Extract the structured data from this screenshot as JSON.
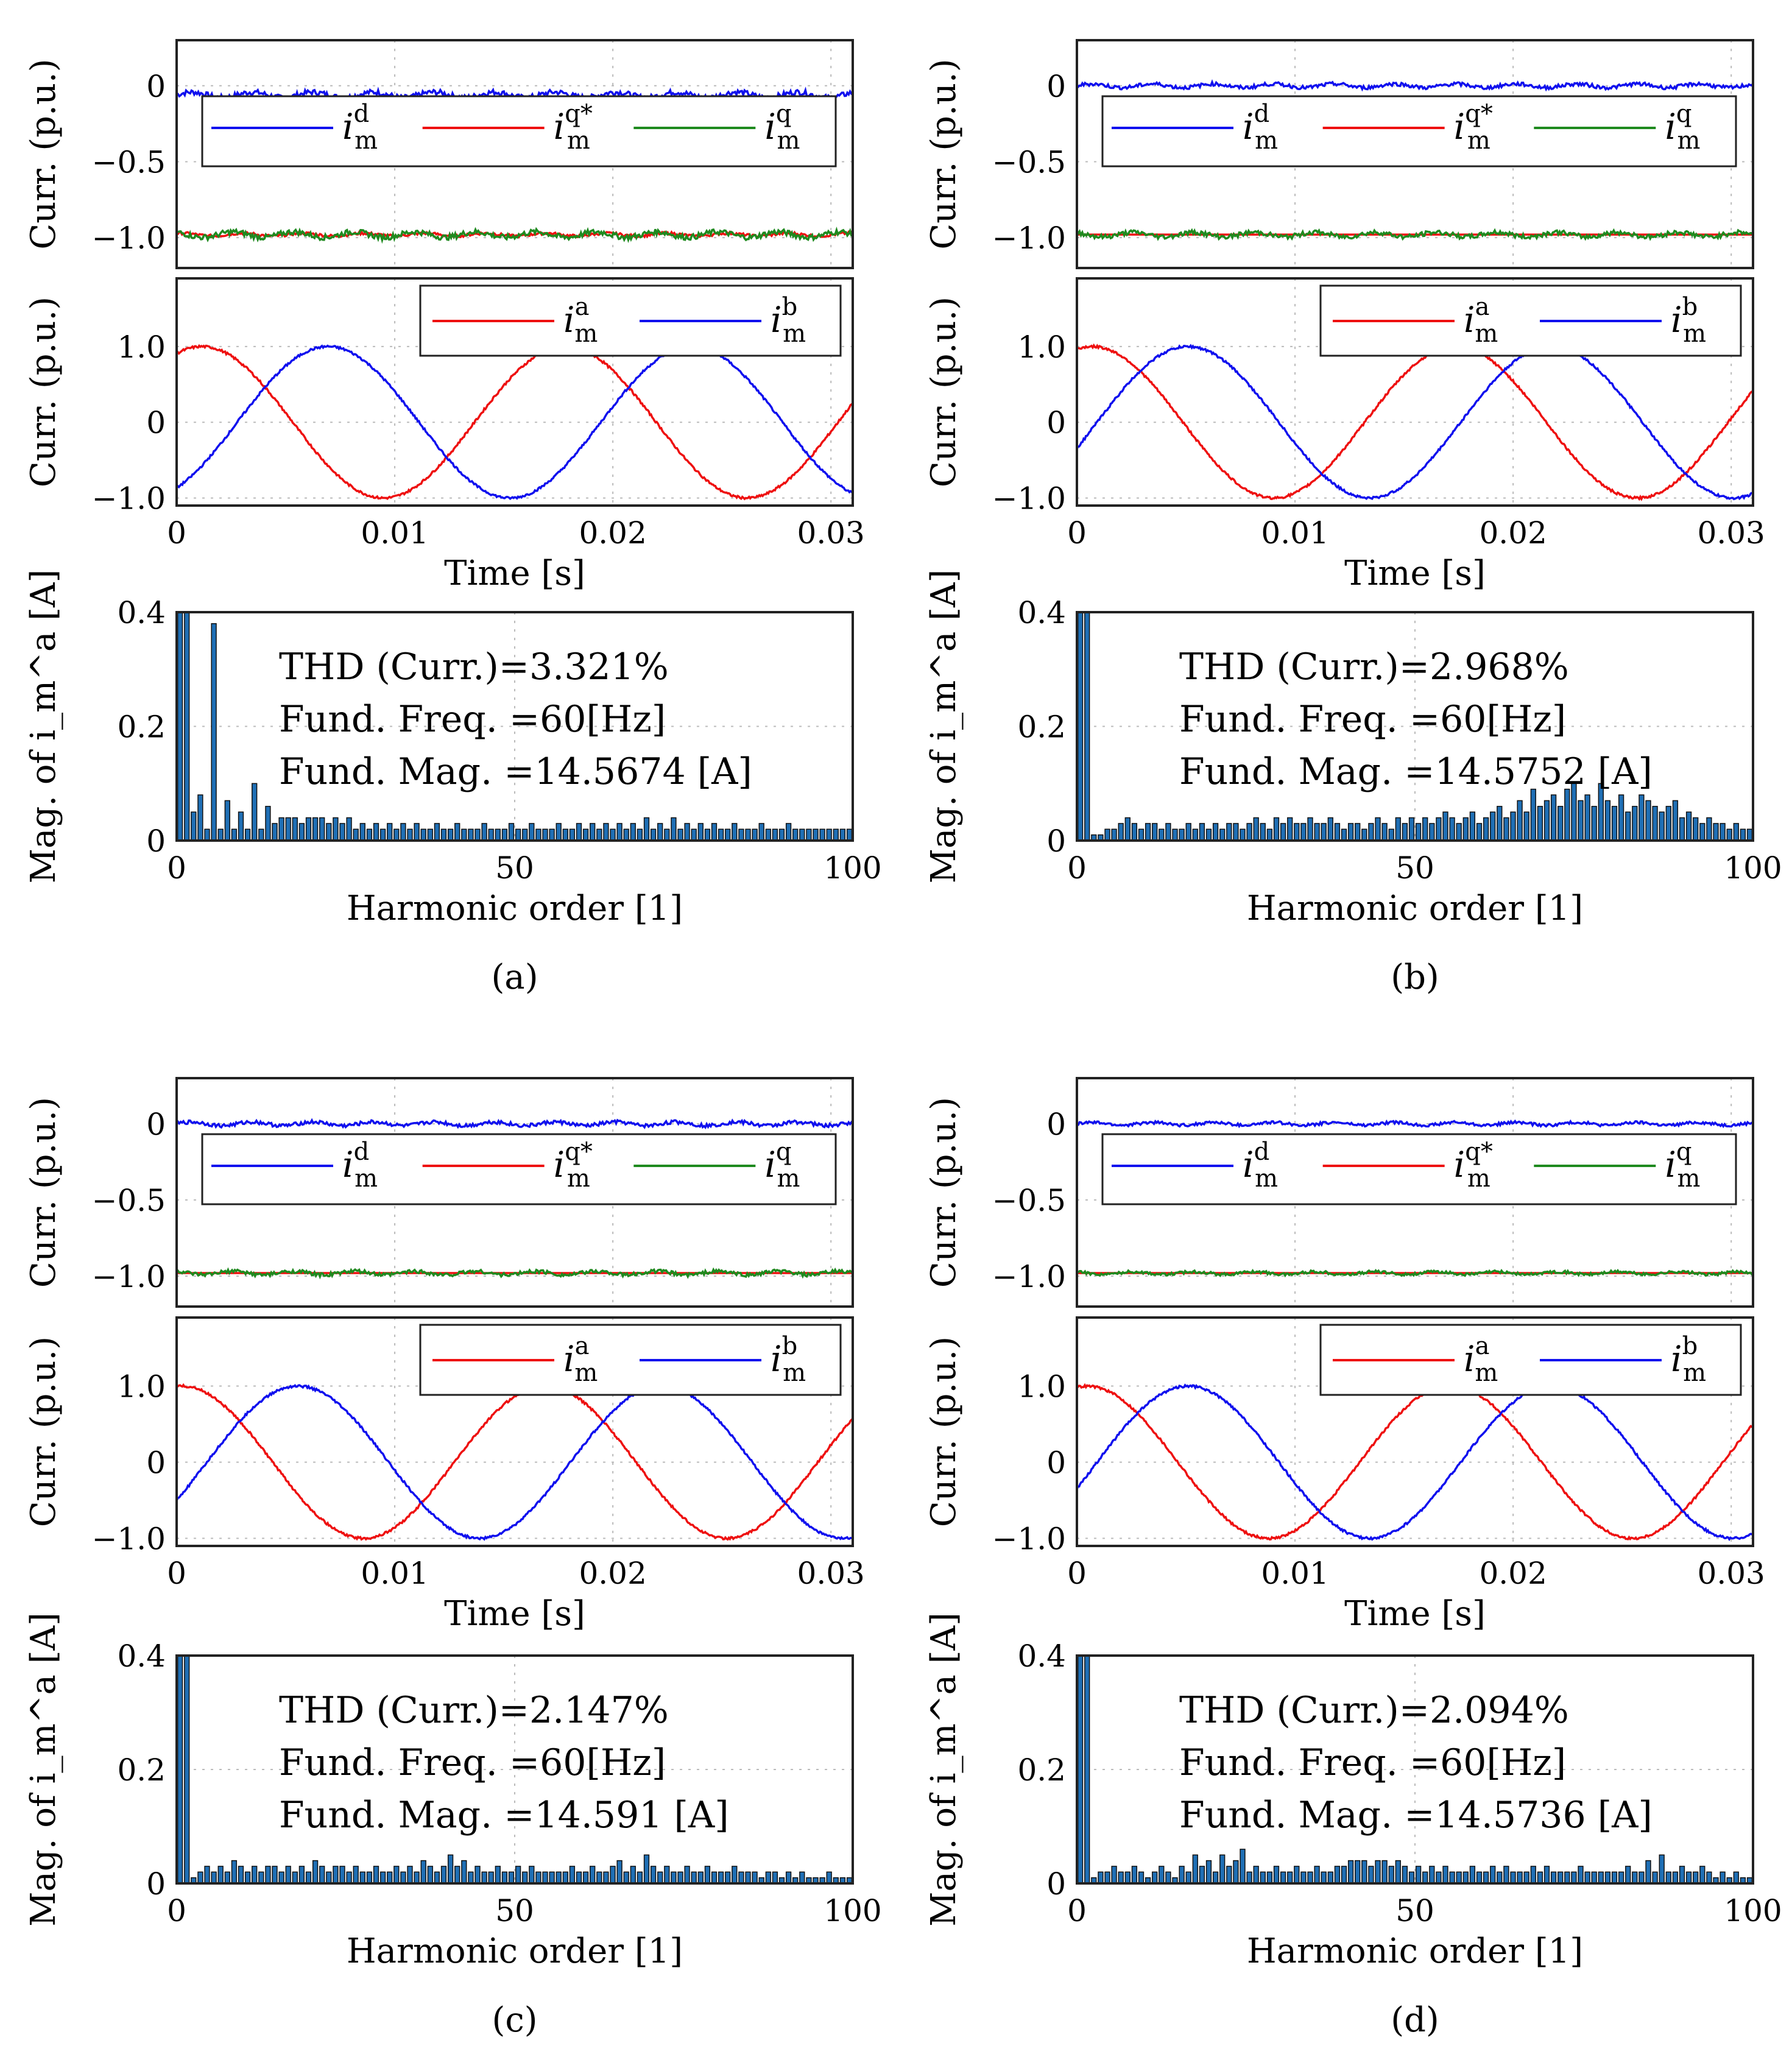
{
  "chart_data": [
    {
      "label": "(a)",
      "type": "line",
      "dq": {
        "ylabel": "Curr. (p.u.)",
        "ylim": [
          -1.2,
          0.3
        ],
        "yticks": [
          "0",
          "−0.5",
          "−1.0"
        ],
        "legend": [
          "d",
          "q*",
          "q"
        ],
        "series": [
          {
            "name": "i_m^d",
            "color": "#1010ee",
            "mean": -0.06,
            "ripple": 0.03
          },
          {
            "name": "i_m^q*",
            "color": "#ee1010",
            "mean": -0.98,
            "ripple": 0.015
          },
          {
            "name": "i_m^q",
            "color": "#1f8a1f",
            "mean": -0.98,
            "ripple": 0.03
          }
        ]
      },
      "ab": {
        "ylabel": "Curr. (p.u.)",
        "xlabel": "Time [s]",
        "xlim": [
          0,
          0.031
        ],
        "ylim": [
          -1.1,
          1.9
        ],
        "xticks": [
          "0",
          "0.01",
          "0.02",
          "0.03"
        ],
        "yticks": [
          "1.0",
          "0",
          "−1.0"
        ],
        "legend": [
          "a",
          "b"
        ],
        "frequency_hz": 60,
        "series": [
          {
            "name": "i_m^a",
            "color": "#ee1010",
            "phase_deg": 65
          },
          {
            "name": "i_m^b",
            "color": "#1010ee",
            "phase_deg": -60
          }
        ]
      },
      "fft": {
        "ylabel": "Mag. of i_m^a [A]",
        "xlabel": "Harmonic order [1]",
        "xlim": [
          0,
          100
        ],
        "ylim": [
          0,
          0.4
        ],
        "xticks": [
          "0",
          "50",
          "100"
        ],
        "yticks": [
          "0",
          "0.2",
          "0.4"
        ],
        "info": [
          "THD (Curr.)=3.321%",
          "Fund. Freq. =60[Hz]",
          "Fund. Mag. =14.5674 [A]"
        ],
        "values": [
          0.4,
          0.4,
          0.05,
          0.08,
          0.02,
          0.38,
          0.02,
          0.07,
          0.02,
          0.05,
          0.02,
          0.1,
          0.02,
          0.06,
          0.03,
          0.04,
          0.04,
          0.04,
          0.03,
          0.04,
          0.04,
          0.04,
          0.03,
          0.04,
          0.03,
          0.04,
          0.02,
          0.03,
          0.02,
          0.03,
          0.02,
          0.03,
          0.02,
          0.03,
          0.02,
          0.03,
          0.02,
          0.02,
          0.03,
          0.02,
          0.02,
          0.03,
          0.02,
          0.02,
          0.02,
          0.03,
          0.02,
          0.02,
          0.02,
          0.03,
          0.02,
          0.02,
          0.03,
          0.02,
          0.02,
          0.02,
          0.03,
          0.02,
          0.02,
          0.03,
          0.02,
          0.03,
          0.02,
          0.03,
          0.02,
          0.03,
          0.02,
          0.03,
          0.02,
          0.04,
          0.02,
          0.03,
          0.02,
          0.04,
          0.02,
          0.03,
          0.02,
          0.03,
          0.02,
          0.03,
          0.02,
          0.02,
          0.03,
          0.02,
          0.02,
          0.02,
          0.03,
          0.02,
          0.02,
          0.02,
          0.03,
          0.02,
          0.02,
          0.02,
          0.02,
          0.02,
          0.02,
          0.02,
          0.02,
          0.02
        ]
      }
    },
    {
      "label": "(b)",
      "type": "line",
      "dq": {
        "ylabel": "Curr. (p.u.)",
        "ylim": [
          -1.2,
          0.3
        ],
        "yticks": [
          "0",
          "−0.5",
          "−1.0"
        ],
        "legend": [
          "d",
          "q*",
          "q"
        ],
        "series": [
          {
            "name": "i_m^d",
            "color": "#1010ee",
            "mean": 0.0,
            "ripple": 0.02
          },
          {
            "name": "i_m^q*",
            "color": "#ee1010",
            "mean": -0.98,
            "ripple": 0.0
          },
          {
            "name": "i_m^q",
            "color": "#1f8a1f",
            "mean": -0.98,
            "ripple": 0.025
          }
        ]
      },
      "ab": {
        "ylabel": "Curr. (p.u.)",
        "xlabel": "Time [s]",
        "xlim": [
          0,
          0.031
        ],
        "ylim": [
          -1.1,
          1.9
        ],
        "xticks": [
          "0",
          "0.01",
          "0.02",
          "0.03"
        ],
        "yticks": [
          "1.0",
          "0",
          "−1.0"
        ],
        "legend": [
          "a",
          "b"
        ],
        "frequency_hz": 60,
        "series": [
          {
            "name": "i_m^a",
            "color": "#ee1010",
            "phase_deg": 75
          },
          {
            "name": "i_m^b",
            "color": "#1010ee",
            "phase_deg": -20
          }
        ]
      },
      "fft": {
        "ylabel": "Mag. of i_m^a [A]",
        "xlabel": "Harmonic order [1]",
        "xlim": [
          0,
          100
        ],
        "ylim": [
          0,
          0.4
        ],
        "xticks": [
          "0",
          "50",
          "100"
        ],
        "yticks": [
          "0",
          "0.2",
          "0.4"
        ],
        "info": [
          "THD (Curr.)=2.968%",
          "Fund. Freq. =60[Hz]",
          "Fund. Mag. =14.5752 [A]"
        ],
        "values": [
          0.4,
          0.4,
          0.01,
          0.01,
          0.02,
          0.02,
          0.03,
          0.04,
          0.03,
          0.02,
          0.03,
          0.03,
          0.02,
          0.03,
          0.02,
          0.02,
          0.03,
          0.02,
          0.03,
          0.02,
          0.03,
          0.02,
          0.03,
          0.03,
          0.02,
          0.03,
          0.04,
          0.03,
          0.02,
          0.04,
          0.03,
          0.04,
          0.03,
          0.03,
          0.04,
          0.03,
          0.03,
          0.04,
          0.03,
          0.02,
          0.03,
          0.03,
          0.02,
          0.03,
          0.04,
          0.03,
          0.02,
          0.04,
          0.03,
          0.04,
          0.03,
          0.04,
          0.03,
          0.04,
          0.05,
          0.04,
          0.03,
          0.04,
          0.05,
          0.03,
          0.04,
          0.05,
          0.06,
          0.04,
          0.05,
          0.07,
          0.05,
          0.09,
          0.06,
          0.07,
          0.08,
          0.06,
          0.09,
          0.1,
          0.07,
          0.08,
          0.06,
          0.1,
          0.07,
          0.06,
          0.08,
          0.05,
          0.06,
          0.08,
          0.07,
          0.06,
          0.05,
          0.06,
          0.07,
          0.04,
          0.05,
          0.04,
          0.03,
          0.04,
          0.03,
          0.03,
          0.02,
          0.03,
          0.02,
          0.02
        ]
      }
    },
    {
      "label": "(c)",
      "type": "line",
      "dq": {
        "ylabel": "Curr. (p.u.)",
        "ylim": [
          -1.2,
          0.3
        ],
        "yticks": [
          "0",
          "−0.5",
          "−1.0"
        ],
        "legend": [
          "d",
          "q*",
          "q"
        ],
        "series": [
          {
            "name": "i_m^d",
            "color": "#1010ee",
            "mean": 0.0,
            "ripple": 0.02
          },
          {
            "name": "i_m^q*",
            "color": "#ee1010",
            "mean": -0.98,
            "ripple": 0.0
          },
          {
            "name": "i_m^q",
            "color": "#1f8a1f",
            "mean": -0.98,
            "ripple": 0.02
          }
        ]
      },
      "ab": {
        "ylabel": "Curr. (p.u.)",
        "xlabel": "Time [s]",
        "xlim": [
          0,
          0.031
        ],
        "ylim": [
          -1.1,
          1.9
        ],
        "xticks": [
          "0",
          "0.01",
          "0.02",
          "0.03"
        ],
        "yticks": [
          "1.0",
          "0",
          "−1.0"
        ],
        "legend": [
          "a",
          "b"
        ],
        "frequency_hz": 60,
        "series": [
          {
            "name": "i_m^a",
            "color": "#ee1010",
            "phase_deg": 85
          },
          {
            "name": "i_m^b",
            "color": "#1010ee",
            "phase_deg": -30
          }
        ]
      },
      "fft": {
        "ylabel": "Mag. of i_m^a [A]",
        "xlabel": "Harmonic order [1]",
        "xlim": [
          0,
          100
        ],
        "ylim": [
          0,
          0.4
        ],
        "xticks": [
          "0",
          "50",
          "100"
        ],
        "yticks": [
          "0",
          "0.2",
          "0.4"
        ],
        "info": [
          "THD (Curr.)=2.147%",
          "Fund. Freq. =60[Hz]",
          "Fund. Mag. =14.591 [A]"
        ],
        "values": [
          0.4,
          0.4,
          0.01,
          0.02,
          0.03,
          0.02,
          0.03,
          0.02,
          0.04,
          0.03,
          0.02,
          0.03,
          0.02,
          0.03,
          0.03,
          0.02,
          0.03,
          0.02,
          0.03,
          0.02,
          0.04,
          0.03,
          0.02,
          0.03,
          0.03,
          0.02,
          0.03,
          0.02,
          0.02,
          0.03,
          0.02,
          0.02,
          0.03,
          0.02,
          0.03,
          0.02,
          0.04,
          0.03,
          0.02,
          0.03,
          0.05,
          0.03,
          0.04,
          0.02,
          0.03,
          0.02,
          0.02,
          0.03,
          0.02,
          0.02,
          0.03,
          0.02,
          0.03,
          0.02,
          0.02,
          0.02,
          0.02,
          0.02,
          0.03,
          0.02,
          0.02,
          0.03,
          0.02,
          0.02,
          0.03,
          0.04,
          0.02,
          0.03,
          0.02,
          0.05,
          0.03,
          0.02,
          0.03,
          0.02,
          0.02,
          0.03,
          0.02,
          0.02,
          0.03,
          0.02,
          0.02,
          0.02,
          0.03,
          0.02,
          0.02,
          0.02,
          0.01,
          0.02,
          0.02,
          0.01,
          0.02,
          0.01,
          0.02,
          0.01,
          0.01,
          0.01,
          0.02,
          0.01,
          0.01,
          0.01
        ]
      }
    },
    {
      "label": "(d)",
      "type": "line",
      "dq": {
        "ylabel": "Curr. (p.u.)",
        "ylim": [
          -1.2,
          0.3
        ],
        "yticks": [
          "0",
          "−0.5",
          "−1.0"
        ],
        "legend": [
          "d",
          "q*",
          "q"
        ],
        "series": [
          {
            "name": "i_m^d",
            "color": "#1010ee",
            "mean": 0.0,
            "ripple": 0.015
          },
          {
            "name": "i_m^q*",
            "color": "#ee1010",
            "mean": -0.98,
            "ripple": 0.0
          },
          {
            "name": "i_m^q",
            "color": "#1f8a1f",
            "mean": -0.98,
            "ripple": 0.015
          }
        ]
      },
      "ab": {
        "ylabel": "Curr. (p.u.)",
        "xlabel": "Time [s]",
        "xlim": [
          0,
          0.031
        ],
        "ylim": [
          -1.1,
          1.9
        ],
        "xticks": [
          "0",
          "0.01",
          "0.02",
          "0.03"
        ],
        "yticks": [
          "1.0",
          "0",
          "−1.0"
        ],
        "legend": [
          "a",
          "b"
        ],
        "frequency_hz": 60,
        "series": [
          {
            "name": "i_m^a",
            "color": "#ee1010",
            "phase_deg": 80
          },
          {
            "name": "i_m^b",
            "color": "#1010ee",
            "phase_deg": -20
          }
        ]
      },
      "fft": {
        "ylabel": "Mag. of i_m^a [A]",
        "xlabel": "Harmonic order [1]",
        "xlim": [
          0,
          100
        ],
        "ylim": [
          0,
          0.4
        ],
        "xticks": [
          "0",
          "50",
          "100"
        ],
        "yticks": [
          "0",
          "0.2",
          "0.4"
        ],
        "info": [
          "THD (Curr.)=2.094%",
          "Fund. Freq. =60[Hz]",
          "Fund. Mag. =14.5736 [A]"
        ],
        "values": [
          0.4,
          0.4,
          0.01,
          0.02,
          0.02,
          0.03,
          0.02,
          0.02,
          0.03,
          0.02,
          0.01,
          0.02,
          0.03,
          0.02,
          0.01,
          0.03,
          0.02,
          0.05,
          0.03,
          0.04,
          0.02,
          0.05,
          0.03,
          0.04,
          0.06,
          0.02,
          0.03,
          0.02,
          0.02,
          0.03,
          0.02,
          0.02,
          0.03,
          0.02,
          0.02,
          0.03,
          0.02,
          0.02,
          0.03,
          0.03,
          0.04,
          0.04,
          0.04,
          0.03,
          0.04,
          0.04,
          0.03,
          0.04,
          0.03,
          0.02,
          0.03,
          0.02,
          0.03,
          0.02,
          0.03,
          0.02,
          0.02,
          0.02,
          0.03,
          0.02,
          0.02,
          0.03,
          0.02,
          0.03,
          0.02,
          0.02,
          0.02,
          0.03,
          0.02,
          0.03,
          0.02,
          0.02,
          0.02,
          0.02,
          0.03,
          0.02,
          0.02,
          0.02,
          0.02,
          0.02,
          0.02,
          0.03,
          0.02,
          0.02,
          0.04,
          0.02,
          0.05,
          0.02,
          0.02,
          0.03,
          0.02,
          0.02,
          0.03,
          0.02,
          0.01,
          0.02,
          0.01,
          0.02,
          0.01,
          0.01
        ]
      }
    }
  ]
}
